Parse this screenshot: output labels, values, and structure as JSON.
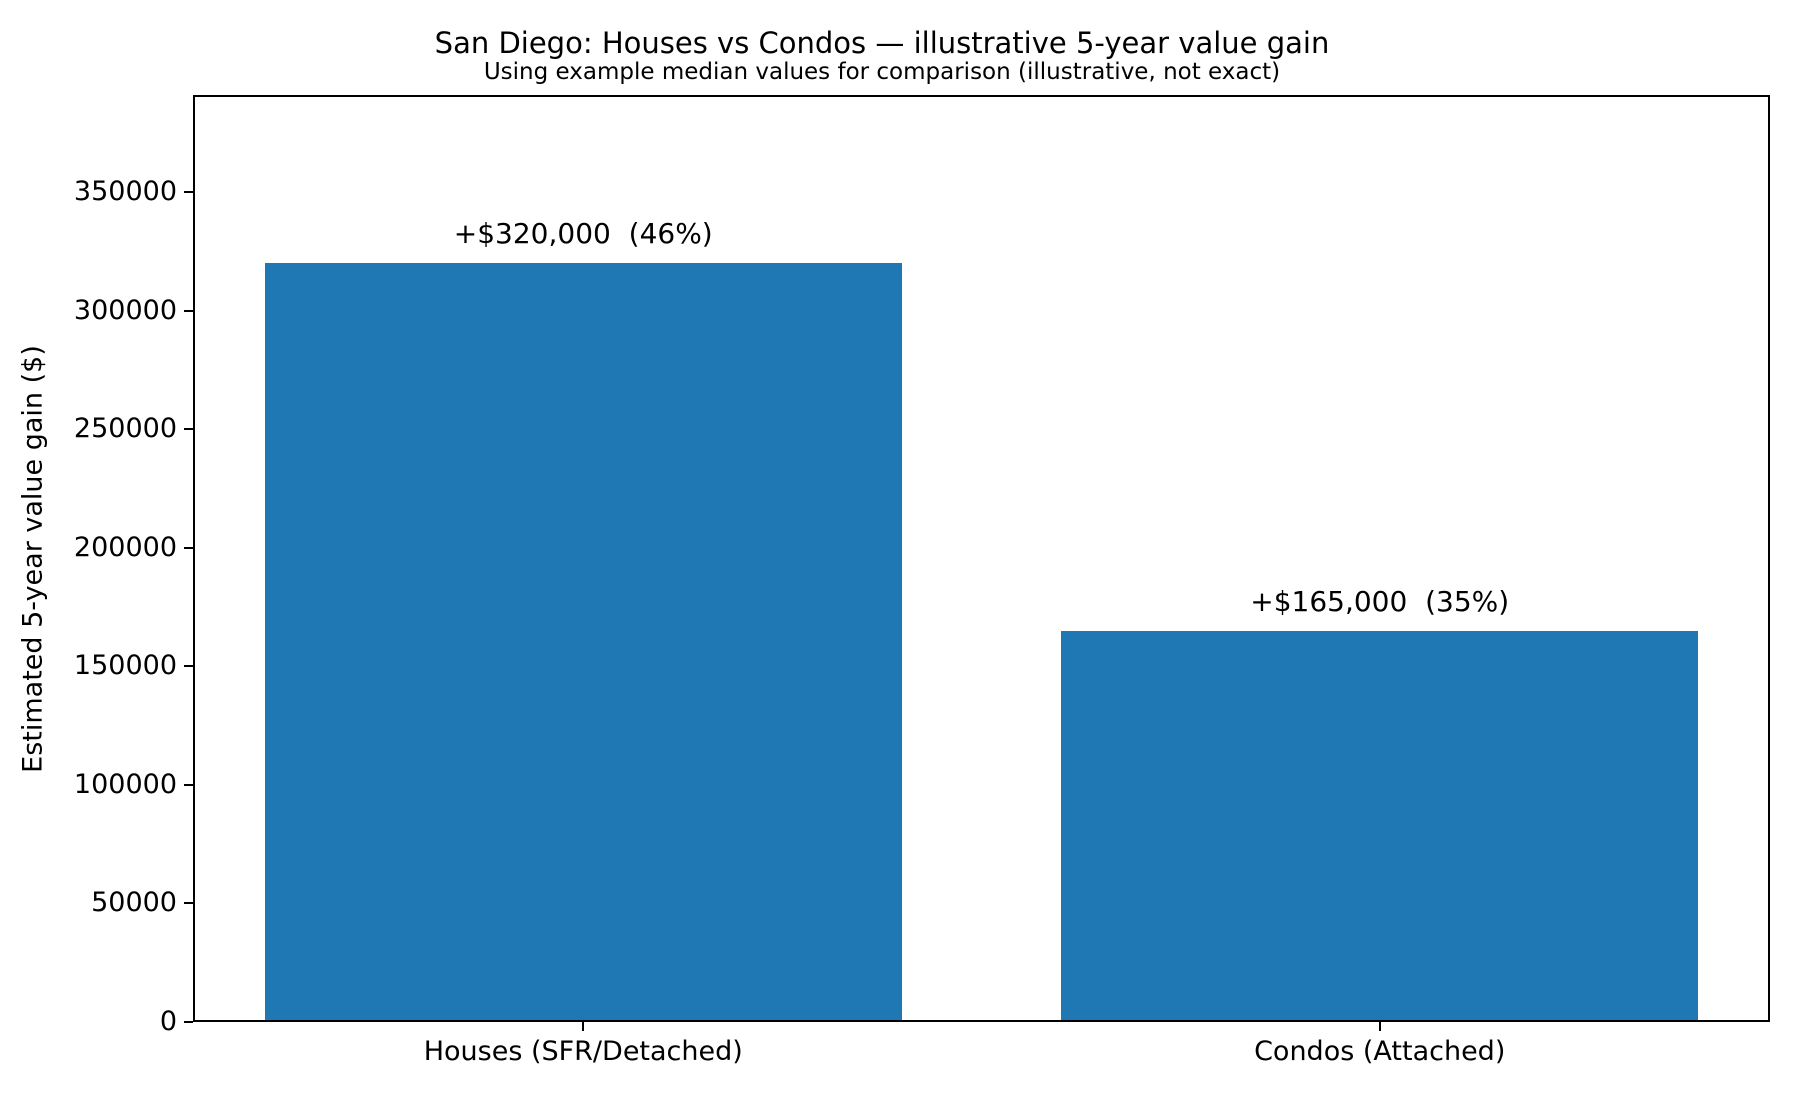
{
  "chart_data": {
    "type": "bar",
    "title": "San Diego: Houses vs Condos — illustrative 5-year value gain",
    "subtitle": "Using example median values for comparison (illustrative, not exact)",
    "categories": [
      "Houses (SFR/Detached)",
      "Condos (Attached)"
    ],
    "values": [
      320000,
      165000
    ],
    "bar_labels": [
      "+$320,000  (46%)",
      "+$165,000  (35%)"
    ],
    "xlabel": "",
    "ylabel": "Estimated 5-year value gain ($)",
    "yticks": [
      0,
      50000,
      100000,
      150000,
      200000,
      250000,
      300000,
      350000
    ],
    "ylim": [
      0,
      391000
    ],
    "xlim": [
      -0.49,
      1.49
    ],
    "bar_width": 0.8,
    "bar_color": "#1f77b4",
    "grid": false,
    "legend": "none",
    "background_color": "#ffffff",
    "spine_color": "#000000"
  }
}
